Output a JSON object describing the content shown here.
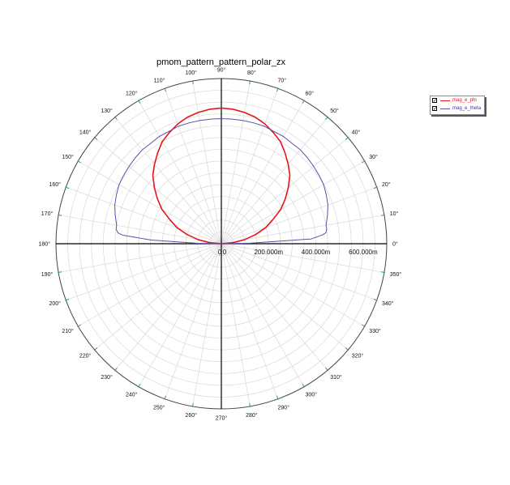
{
  "chart_data": {
    "type": "line",
    "title": "pmom_pattern_pattern_polar_zx",
    "angle_ticks": [
      "0°",
      "10°",
      "20°",
      "30°",
      "40°",
      "50°",
      "60°",
      "70°",
      "80°",
      "90°",
      "100°",
      "110°",
      "120°",
      "130°",
      "140°",
      "150°",
      "160°",
      "170°",
      "180°",
      "190°",
      "200°",
      "210°",
      "220°",
      "230°",
      "240°",
      "250°",
      "260°",
      "270°",
      "280°",
      "290°",
      "300°",
      "310°",
      "320°",
      "330°",
      "340°",
      "350°"
    ],
    "radial_ticks": [
      "0",
      "0",
      "200.000m",
      "400.000m",
      "600.000m"
    ],
    "radial_tick_values": [
      0,
      0,
      0.2,
      0.4,
      0.6
    ],
    "rlim": [
      0,
      0.7
    ],
    "grid": true,
    "legend_position": "top-right",
    "series": [
      {
        "name": "mag_e_phi",
        "color": "#e8121a",
        "theta_deg": [
          0,
          5,
          10,
          15,
          20,
          25,
          30,
          35,
          40,
          45,
          50,
          55,
          60,
          65,
          70,
          75,
          80,
          85,
          90,
          95,
          100,
          105,
          110,
          115,
          120,
          125,
          130,
          135,
          140,
          145,
          150,
          155,
          160,
          165,
          170,
          175,
          180
        ],
        "r": [
          0.0,
          0.05,
          0.1,
          0.15,
          0.2,
          0.24,
          0.29,
          0.33,
          0.37,
          0.41,
          0.44,
          0.47,
          0.5,
          0.52,
          0.54,
          0.555,
          0.565,
          0.572,
          0.575,
          0.572,
          0.565,
          0.555,
          0.54,
          0.52,
          0.5,
          0.47,
          0.44,
          0.41,
          0.37,
          0.33,
          0.29,
          0.24,
          0.2,
          0.15,
          0.1,
          0.05,
          0.0
        ]
      },
      {
        "name": "mag_e_theta",
        "color": "#5454a8",
        "theta_deg": [
          0,
          1,
          3,
          5,
          6,
          8,
          10,
          15,
          20,
          25,
          30,
          35,
          40,
          45,
          50,
          55,
          60,
          65,
          70,
          75,
          80,
          85,
          90,
          95,
          100,
          105,
          110,
          115,
          120,
          125,
          130,
          135,
          140,
          145,
          150,
          155,
          160,
          165,
          170,
          172,
          174,
          175,
          177,
          179,
          180
        ],
        "r": [
          0.0,
          0.12,
          0.38,
          0.43,
          0.445,
          0.45,
          0.45,
          0.465,
          0.48,
          0.49,
          0.5,
          0.505,
          0.51,
          0.515,
          0.52,
          0.52,
          0.525,
          0.525,
          0.53,
          0.53,
          0.53,
          0.53,
          0.53,
          0.53,
          0.53,
          0.53,
          0.53,
          0.525,
          0.525,
          0.52,
          0.52,
          0.515,
          0.51,
          0.505,
          0.5,
          0.49,
          0.48,
          0.465,
          0.45,
          0.45,
          0.44,
          0.42,
          0.3,
          0.1,
          0.0
        ]
      }
    ]
  },
  "legend": {
    "items": [
      {
        "label": "mag_e_phi",
        "checked": "✓"
      },
      {
        "label": "mag_e_theta",
        "checked": "✓"
      }
    ]
  }
}
